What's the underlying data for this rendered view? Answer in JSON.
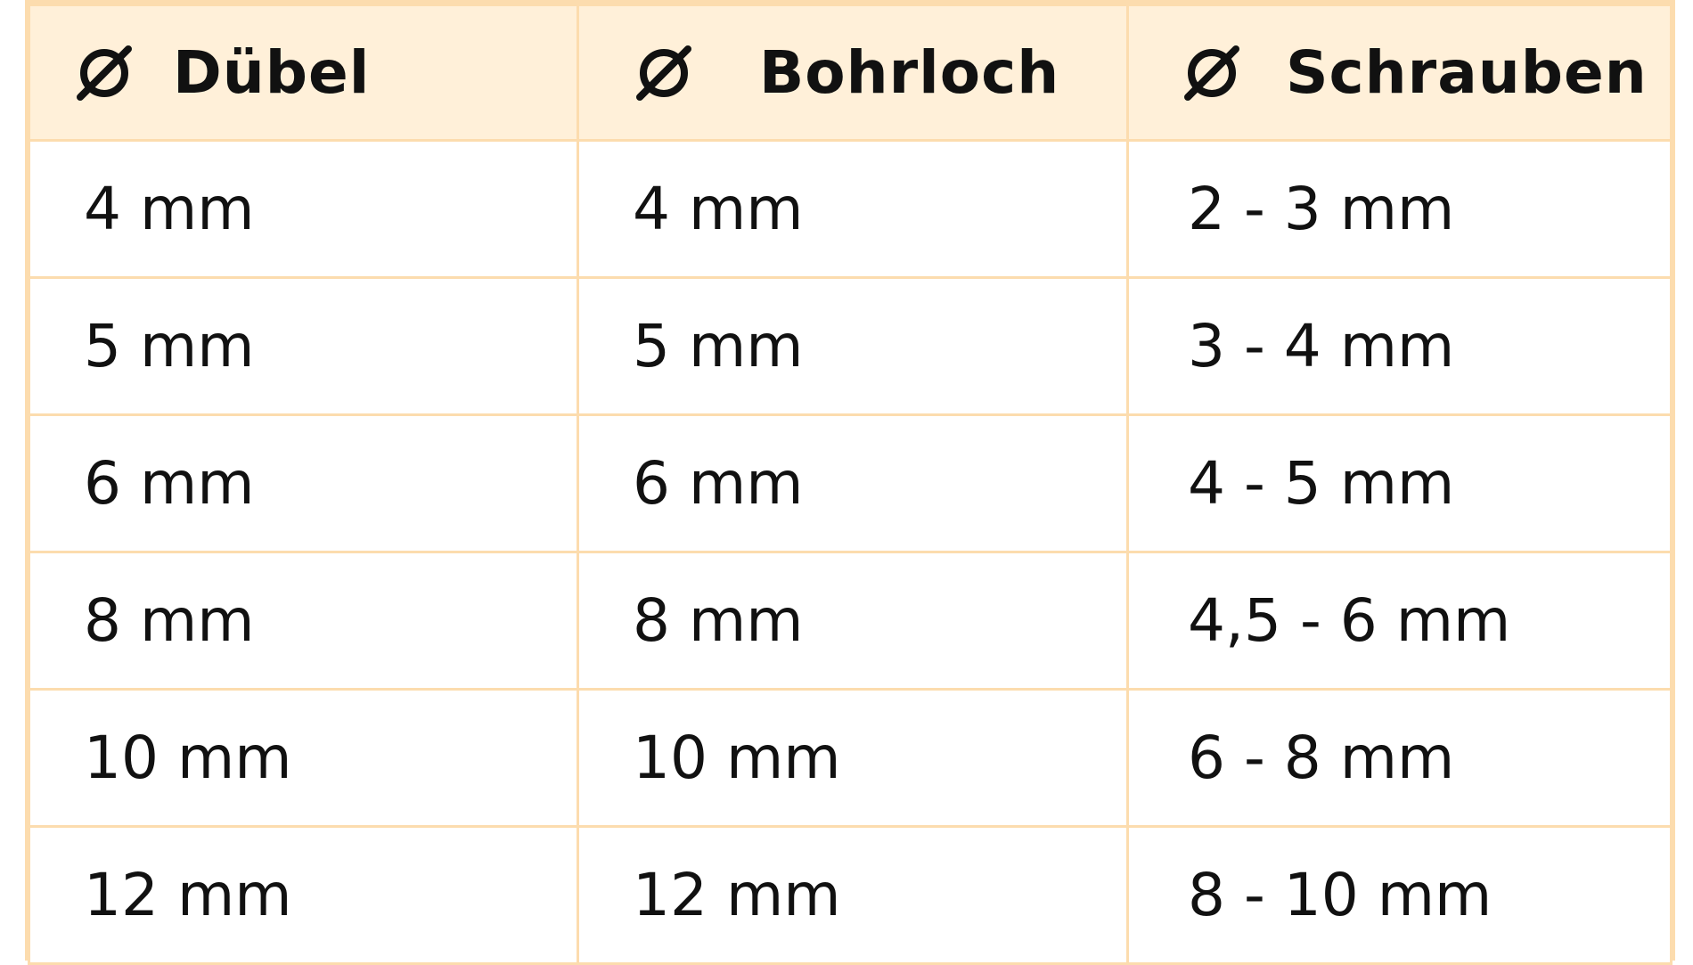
{
  "table": {
    "columns": [
      {
        "icon": "diameter-icon",
        "label": "Dübel"
      },
      {
        "icon": "diameter-icon",
        "label": "Bohrloch"
      },
      {
        "icon": "diameter-icon",
        "label": "Schrauben"
      }
    ],
    "rows": [
      [
        "4 mm",
        "4 mm",
        "2 - 3 mm"
      ],
      [
        "5 mm",
        "5 mm",
        "3 - 4 mm"
      ],
      [
        "6 mm",
        "6 mm",
        "4 - 5 mm"
      ],
      [
        "8 mm",
        "8 mm",
        "4,5 - 6 mm"
      ],
      [
        "10 mm",
        "10 mm",
        "6 - 8 mm"
      ],
      [
        "12 mm",
        "12 mm",
        "8 - 10 mm"
      ]
    ]
  },
  "colors": {
    "border": "#fcdcae",
    "header_background": "#fff0d9",
    "text": "#111111"
  }
}
